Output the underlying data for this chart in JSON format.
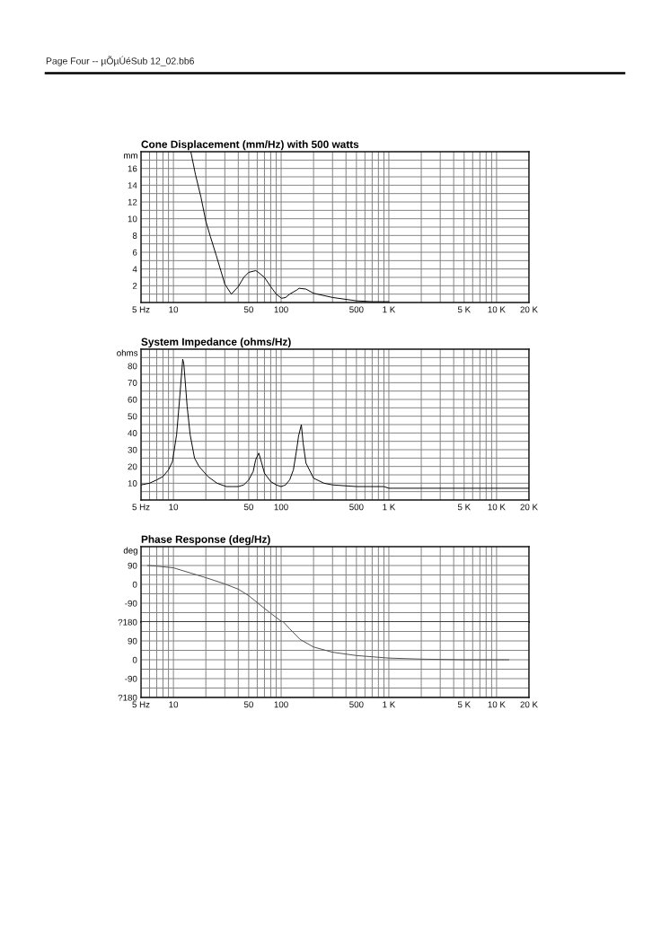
{
  "chart_data": [
    {
      "type": "line",
      "title": "Cone Displacement (mm/Hz) with 500 watts",
      "ylabel": "mm",
      "annotations": [
        "Page Four -- µÕµÚéSub 12_02.bb6"
      ],
      "log": "x",
      "grid": true,
      "color": "#000000",
      "x": [
        14.5,
        16,
        18,
        20,
        22,
        25,
        30,
        34.5,
        40,
        45,
        50,
        58,
        60,
        70,
        80,
        90,
        101,
        110,
        120,
        140,
        147,
        170,
        200,
        300,
        500,
        700,
        1000
      ],
      "values": [
        18,
        15.3,
        12.6,
        9.7,
        7.9,
        5.6,
        2.2,
        1.0,
        1.9,
        3.0,
        3.6,
        3.8,
        3.7,
        3.0,
        1.9,
        1.0,
        0.5,
        0.6,
        1.0,
        1.5,
        1.7,
        1.6,
        1.1,
        0.6,
        0.2,
        0.1,
        0.1
      ],
      "xlim": [
        5,
        20000
      ],
      "ylim": [
        0,
        18
      ],
      "xticks": [
        {
          "value": 5,
          "label": "5 Hz"
        },
        {
          "value": 6,
          "label": null
        },
        {
          "value": 7,
          "label": null
        },
        {
          "value": 8,
          "label": null
        },
        {
          "value": 9,
          "label": null
        },
        10,
        {
          "value": 20,
          "label": null
        },
        {
          "value": 30,
          "label": null
        },
        {
          "value": 40,
          "label": null
        },
        50,
        {
          "value": 60,
          "label": null
        },
        {
          "value": 70,
          "label": null
        },
        {
          "value": 80,
          "label": null
        },
        {
          "value": 90,
          "label": null
        },
        100,
        {
          "value": 200,
          "label": null
        },
        {
          "value": 300,
          "label": null
        },
        {
          "value": 400,
          "label": null
        },
        500,
        {
          "value": 600,
          "label": null
        },
        {
          "value": 700,
          "label": null
        },
        {
          "value": 800,
          "label": null
        },
        {
          "value": 900,
          "label": null
        },
        {
          "value": 1000,
          "label": "1 K"
        },
        {
          "value": 2000,
          "label": null
        },
        {
          "value": 3000,
          "label": null
        },
        {
          "value": 4000,
          "label": null
        },
        {
          "value": 5000,
          "label": "5 K"
        },
        {
          "value": 6000,
          "label": null
        },
        {
          "value": 7000,
          "label": null
        },
        {
          "value": 8000,
          "label": null
        },
        {
          "value": 9000,
          "label": null
        },
        {
          "value": 10000,
          "label": "10 K"
        },
        {
          "value": 20000,
          "label": "20 K"
        }
      ],
      "yticks": [
        {
          "value": 1,
          "label": null
        },
        2,
        {
          "value": 3,
          "label": null
        },
        4,
        {
          "value": 5,
          "label": null
        },
        6,
        {
          "value": 7,
          "label": null
        },
        8,
        {
          "value": 9,
          "label": null
        },
        10,
        {
          "value": 11,
          "label": null
        },
        12,
        {
          "value": 13,
          "label": null
        },
        14,
        {
          "value": 15,
          "label": null
        },
        16,
        {
          "value": 17,
          "label": null
        }
      ]
    },
    {
      "type": "line",
      "title": "System Impedance (ohms/Hz)",
      "ylabel": "ohms",
      "log": "x",
      "grid": true,
      "color": "#000000",
      "x": [
        5,
        6,
        7,
        8,
        9,
        9.8,
        10.7,
        11.4,
        12.2,
        12.5,
        13.4,
        14.3,
        15.7,
        17.3,
        20.9,
        25.4,
        31,
        35,
        40,
        45,
        50,
        55,
        58,
        62,
        66,
        70,
        80,
        90,
        100,
        110,
        120,
        130,
        140,
        145,
        154,
        160,
        170,
        200,
        250,
        300,
        500,
        900,
        1000,
        2000,
        20000
      ],
      "values": [
        9,
        10,
        12,
        14,
        18,
        23,
        39,
        60,
        84,
        81,
        56,
        39,
        25,
        20,
        14,
        10,
        8,
        8,
        8,
        9,
        12,
        17,
        24,
        28,
        22,
        16,
        11,
        9,
        8,
        9,
        12,
        18,
        31,
        38,
        45,
        34,
        22,
        13,
        10,
        9,
        8,
        8,
        7,
        7,
        7
      ],
      "xlim": [
        5,
        20000
      ],
      "ylim": [
        0,
        90
      ],
      "xticks": [
        {
          "value": 5,
          "label": "5 Hz"
        },
        {
          "value": 6,
          "label": null
        },
        {
          "value": 7,
          "label": null
        },
        {
          "value": 8,
          "label": null
        },
        {
          "value": 9,
          "label": null
        },
        10,
        {
          "value": 20,
          "label": null
        },
        {
          "value": 30,
          "label": null
        },
        {
          "value": 40,
          "label": null
        },
        50,
        {
          "value": 60,
          "label": null
        },
        {
          "value": 70,
          "label": null
        },
        {
          "value": 80,
          "label": null
        },
        {
          "value": 90,
          "label": null
        },
        100,
        {
          "value": 200,
          "label": null
        },
        {
          "value": 300,
          "label": null
        },
        {
          "value": 400,
          "label": null
        },
        500,
        {
          "value": 600,
          "label": null
        },
        {
          "value": 700,
          "label": null
        },
        {
          "value": 800,
          "label": null
        },
        {
          "value": 900,
          "label": null
        },
        {
          "value": 1000,
          "label": "1 K"
        },
        {
          "value": 2000,
          "label": null
        },
        {
          "value": 3000,
          "label": null
        },
        {
          "value": 4000,
          "label": null
        },
        {
          "value": 5000,
          "label": "5 K"
        },
        {
          "value": 6000,
          "label": null
        },
        {
          "value": 7000,
          "label": null
        },
        {
          "value": 8000,
          "label": null
        },
        {
          "value": 9000,
          "label": null
        },
        {
          "value": 10000,
          "label": "10 K"
        },
        {
          "value": 20000,
          "label": "20 K"
        }
      ],
      "yticks": [
        {
          "value": 5,
          "label": null
        },
        10,
        {
          "value": 15,
          "label": null
        },
        20,
        {
          "value": 25,
          "label": null
        },
        30,
        {
          "value": 35,
          "label": null
        },
        40,
        {
          "value": 45,
          "label": null
        },
        50,
        {
          "value": 55,
          "label": null
        },
        60,
        {
          "value": 65,
          "label": null
        },
        70,
        {
          "value": 75,
          "label": null
        },
        80,
        {
          "value": 85,
          "label": null
        }
      ]
    },
    {
      "type": "line",
      "title": "Phase Response (deg/Hz)",
      "ylabel": "deg",
      "log": "x",
      "grid": true,
      "color": "#4d4d4d",
      "tick_labels": "y",
      "x": [
        5.75,
        7,
        10,
        20,
        30,
        40,
        50,
        60,
        70,
        80,
        100,
        105
      ],
      "values": [
        90,
        87,
        79,
        32,
        2,
        -23,
        -54,
        -87,
        -115,
        -138,
        -176,
        -180
      ],
      "xlim": [
        5,
        20000
      ],
      "ylim": [
        -180,
        180
      ],
      "xticks": [
        5,
        6,
        7,
        8,
        9,
        10,
        20,
        30,
        40,
        50,
        60,
        70,
        80,
        90,
        100,
        200,
        300,
        400,
        500,
        600,
        700,
        800,
        900,
        1000,
        2000,
        3000,
        4000,
        5000,
        6000,
        7000,
        8000,
        9000,
        10000,
        20000
      ],
      "yticks": [
        {
          "value": -180,
          "label": "?180"
        },
        {
          "value": -135,
          "label": null
        },
        -90,
        {
          "value": -45,
          "label": null
        },
        0,
        {
          "value": 45,
          "label": null
        },
        90,
        {
          "value": 135,
          "label": null
        }
      ]
    },
    {
      "type": "line",
      "log": "x",
      "grid": true,
      "color": "#4d4d4d",
      "x": [
        105,
        120,
        150,
        200,
        300,
        500,
        1000,
        2000,
        5000,
        13000
      ],
      "values": [
        180,
        148,
        97,
        61,
        36,
        20,
        8,
        3,
        0,
        0
      ],
      "xlim": [
        5,
        20000
      ],
      "ylim": [
        -180,
        180
      ],
      "xticks": [
        {
          "value": 5,
          "label": "5 Hz"
        },
        {
          "value": 6,
          "label": null
        },
        {
          "value": 7,
          "label": null
        },
        {
          "value": 8,
          "label": null
        },
        {
          "value": 9,
          "label": null
        },
        10,
        {
          "value": 20,
          "label": null
        },
        {
          "value": 30,
          "label": null
        },
        {
          "value": 40,
          "label": null
        },
        50,
        {
          "value": 60,
          "label": null
        },
        {
          "value": 70,
          "label": null
        },
        {
          "value": 80,
          "label": null
        },
        {
          "value": 90,
          "label": null
        },
        100,
        {
          "value": 200,
          "label": null
        },
        {
          "value": 300,
          "label": null
        },
        {
          "value": 400,
          "label": null
        },
        500,
        {
          "value": 600,
          "label": null
        },
        {
          "value": 700,
          "label": null
        },
        {
          "value": 800,
          "label": null
        },
        {
          "value": 900,
          "label": null
        },
        {
          "value": 1000,
          "label": "1 K"
        },
        {
          "value": 2000,
          "label": null
        },
        {
          "value": 3000,
          "label": null
        },
        {
          "value": 4000,
          "label": null
        },
        {
          "value": 5000,
          "label": "5 K"
        },
        {
          "value": 6000,
          "label": null
        },
        {
          "value": 7000,
          "label": null
        },
        {
          "value": 8000,
          "label": null
        },
        {
          "value": 9000,
          "label": null
        },
        {
          "value": 10000,
          "label": "10 K"
        },
        {
          "value": 20000,
          "label": "20 K"
        }
      ],
      "yticks": [
        {
          "value": -180,
          "label": "?180"
        },
        {
          "value": -135,
          "label": null
        },
        -90,
        {
          "value": -45,
          "label": null
        },
        0,
        {
          "value": 45,
          "label": null
        },
        90,
        {
          "value": 135,
          "label": null
        }
      ]
    }
  ]
}
